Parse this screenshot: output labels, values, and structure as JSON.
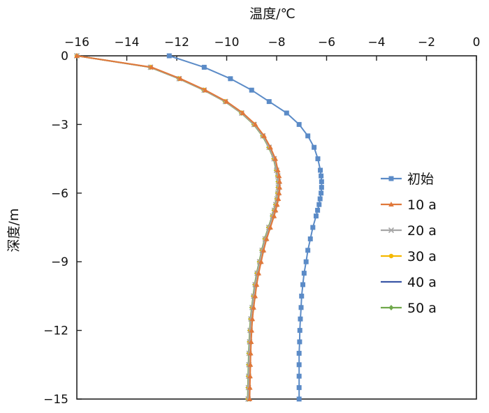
{
  "chart_data": {
    "type": "line",
    "title": "",
    "xlabel": "温度/℃",
    "ylabel": "深度/m",
    "xlim": [
      -16,
      0
    ],
    "ylim": [
      -15,
      0
    ],
    "x_axis_position": "top",
    "x_ticks": [
      "−16",
      "−14",
      "−12",
      "−10",
      "−8",
      "−6",
      "−4",
      "−2",
      "0"
    ],
    "y_ticks": [
      "0",
      "−3",
      "−6",
      "−9",
      "−12",
      "−15"
    ],
    "legend_position": "right",
    "grid": false,
    "depth": [
      0,
      -0.5,
      -1,
      -1.5,
      -2,
      -2.5,
      -3,
      -3.5,
      -4,
      -4.5,
      -5,
      -5.25,
      -5.5,
      -5.75,
      -6,
      -6.25,
      -6.5,
      -6.75,
      -7,
      -7.5,
      -8,
      -8.5,
      -9,
      -9.5,
      -10,
      -10.5,
      -11,
      -11.5,
      -12,
      -12.5,
      -13,
      -13.5,
      -14,
      -14.5,
      -15
    ],
    "series": [
      {
        "name": "初始",
        "color": "#5B8BC7",
        "marker": "square",
        "values": [
          -12.3,
          -10.9,
          -9.85,
          -9.0,
          -8.3,
          -7.6,
          -7.1,
          -6.75,
          -6.5,
          -6.35,
          -6.25,
          -6.22,
          -6.2,
          -6.2,
          -6.22,
          -6.26,
          -6.3,
          -6.36,
          -6.42,
          -6.55,
          -6.65,
          -6.75,
          -6.82,
          -6.9,
          -6.95,
          -7.0,
          -7.02,
          -7.05,
          -7.07,
          -7.08,
          -7.1,
          -7.1,
          -7.1,
          -7.1,
          -7.1
        ]
      },
      {
        "name": "10 a",
        "color": "#E0783A",
        "marker": "triangle",
        "values": [
          -16,
          -13.0,
          -11.85,
          -10.85,
          -10.0,
          -9.35,
          -8.85,
          -8.5,
          -8.25,
          -8.05,
          -7.95,
          -7.9,
          -7.88,
          -7.88,
          -7.9,
          -7.93,
          -7.98,
          -8.04,
          -8.1,
          -8.25,
          -8.4,
          -8.52,
          -8.62,
          -8.72,
          -8.8,
          -8.86,
          -8.92,
          -8.97,
          -9.0,
          -9.02,
          -9.04,
          -9.05,
          -9.06,
          -9.07,
          -9.08
        ]
      },
      {
        "name": "20 a",
        "color": "#A6A6A6",
        "marker": "x",
        "values": [
          -16,
          -13.05,
          -11.9,
          -10.9,
          -10.05,
          -9.4,
          -8.9,
          -8.55,
          -8.3,
          -8.1,
          -8.0,
          -7.95,
          -7.93,
          -7.93,
          -7.95,
          -7.98,
          -8.03,
          -8.09,
          -8.16,
          -8.31,
          -8.46,
          -8.58,
          -8.68,
          -8.78,
          -8.86,
          -8.92,
          -8.98,
          -9.03,
          -9.06,
          -9.08,
          -9.1,
          -9.11,
          -9.12,
          -9.13,
          -9.14
        ]
      },
      {
        "name": "30 a",
        "color": "#F5B800",
        "marker": "circle",
        "values": [
          -16,
          -13.05,
          -11.9,
          -10.9,
          -10.05,
          -9.4,
          -8.9,
          -8.55,
          -8.3,
          -8.1,
          -8.0,
          -7.95,
          -7.93,
          -7.93,
          -7.95,
          -7.98,
          -8.03,
          -8.09,
          -8.16,
          -8.31,
          -8.46,
          -8.58,
          -8.68,
          -8.78,
          -8.86,
          -8.92,
          -8.98,
          -9.03,
          -9.06,
          -9.08,
          -9.1,
          -9.11,
          -9.12,
          -9.13,
          -9.14
        ]
      },
      {
        "name": "40 a",
        "color": "#3A56A6",
        "marker": "none",
        "values": [
          -16,
          -13.05,
          -11.9,
          -10.9,
          -10.05,
          -9.4,
          -8.9,
          -8.55,
          -8.3,
          -8.1,
          -8.0,
          -7.95,
          -7.93,
          -7.93,
          -7.95,
          -7.98,
          -8.03,
          -8.09,
          -8.16,
          -8.31,
          -8.46,
          -8.58,
          -8.68,
          -8.78,
          -8.86,
          -8.92,
          -8.98,
          -9.03,
          -9.06,
          -9.08,
          -9.1,
          -9.11,
          -9.12,
          -9.13,
          -9.14
        ]
      },
      {
        "name": "50 a",
        "color": "#6FA84A",
        "marker": "diamond",
        "values": [
          -16,
          -13.07,
          -11.92,
          -10.92,
          -10.07,
          -9.42,
          -8.92,
          -8.57,
          -8.32,
          -8.12,
          -8.02,
          -7.97,
          -7.95,
          -7.95,
          -7.97,
          -8.0,
          -8.05,
          -8.11,
          -8.18,
          -8.33,
          -8.48,
          -8.6,
          -8.7,
          -8.8,
          -8.88,
          -8.94,
          -9.0,
          -9.05,
          -9.08,
          -9.1,
          -9.12,
          -9.13,
          -9.14,
          -9.15,
          -9.16
        ]
      }
    ]
  }
}
